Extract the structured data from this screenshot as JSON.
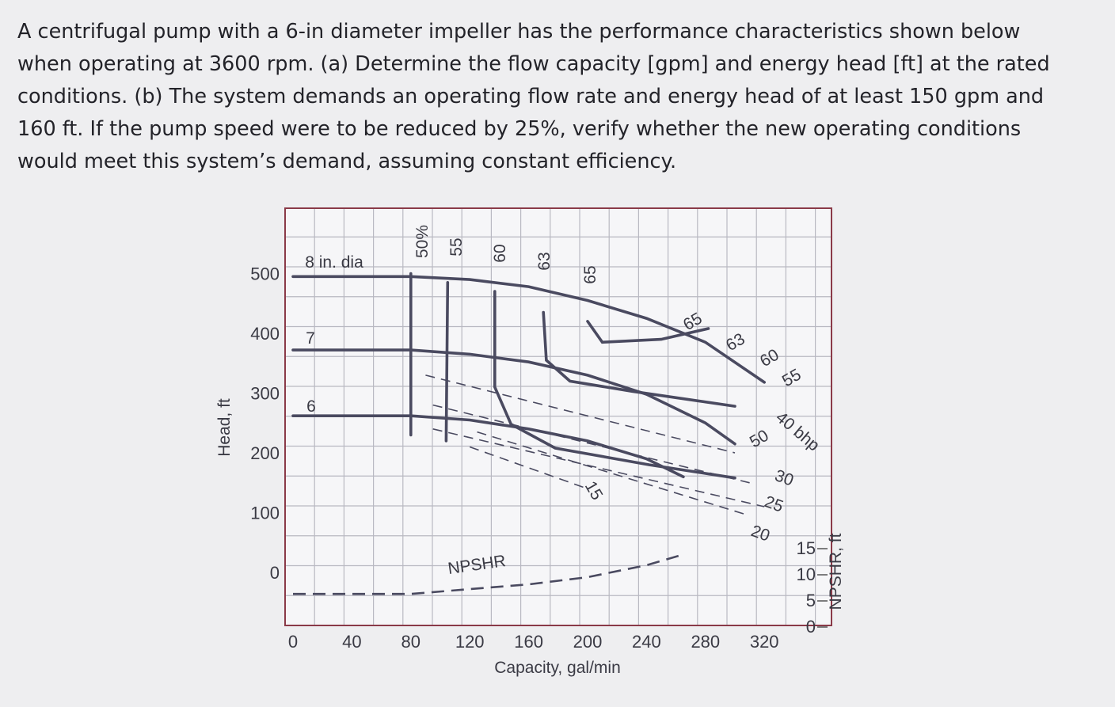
{
  "problem": {
    "text": "A centrifugal pump with a 6-in diameter impeller has the performance characteristics shown below when operating at 3600 rpm. (a) Determine the flow capacity [gpm] and energy head [ft] at the rated conditions. (b) The system demands an operating flow rate and energy head of at least 150 gpm and 160 ft. If the pump speed were to be reduced by 25%, verify whether the new operating conditions would meet this system’s demand, assuming constant efficiency."
  },
  "colors": {
    "curve": "#4a4a60",
    "grid": "#b9b9c2",
    "frame": "#8a3a48"
  },
  "chart_data": {
    "type": "line",
    "xlabel": "Capacity, gal/min",
    "ylabel": "Head, ft",
    "y2label": "NPSHR, ft",
    "x_ticks": [
      "0",
      "40",
      "80",
      "120",
      "160",
      "200",
      "240",
      "280",
      "320"
    ],
    "y_ticks": [
      "0",
      "100",
      "200",
      "300",
      "400",
      "500"
    ],
    "y2_ticks": [
      "0",
      "5",
      "10",
      "15"
    ],
    "xlim": [
      0,
      340
    ],
    "ylim": [
      -100,
      560
    ],
    "grid": true,
    "head_curves": [
      {
        "name": "8 in. dia",
        "points": [
          [
            0,
            495
          ],
          [
            80,
            495
          ],
          [
            120,
            490
          ],
          [
            160,
            478
          ],
          [
            200,
            455
          ],
          [
            240,
            425
          ],
          [
            280,
            385
          ],
          [
            320,
            318
          ]
        ]
      },
      {
        "name": "7",
        "points": [
          [
            0,
            372
          ],
          [
            80,
            372
          ],
          [
            120,
            365
          ],
          [
            160,
            352
          ],
          [
            200,
            330
          ],
          [
            240,
            298
          ],
          [
            280,
            250
          ],
          [
            300,
            215
          ]
        ]
      },
      {
        "name": "6",
        "points": [
          [
            0,
            262
          ],
          [
            80,
            262
          ],
          [
            120,
            255
          ],
          [
            160,
            240
          ],
          [
            200,
            220
          ],
          [
            240,
            190
          ],
          [
            265,
            160
          ]
        ]
      }
    ],
    "efficiency_curves": [
      {
        "name": "50%",
        "points": [
          [
            80,
            500
          ],
          [
            80,
            230
          ]
        ]
      },
      {
        "name": "55",
        "points": [
          [
            105,
            485
          ],
          [
            104,
            220
          ]
        ]
      },
      {
        "name": "60",
        "points": [
          [
            137,
            470
          ],
          [
            137,
            310
          ],
          [
            148,
            248
          ],
          [
            178,
            208
          ],
          [
            242,
            180
          ],
          [
            300,
            158
          ]
        ]
      },
      {
        "name": "63",
        "points": [
          [
            170,
            435
          ],
          [
            172,
            355
          ],
          [
            188,
            320
          ],
          [
            230,
            303
          ],
          [
            300,
            278
          ]
        ]
      },
      {
        "name": "65",
        "points": [
          [
            200,
            420
          ],
          [
            210,
            385
          ],
          [
            250,
            390
          ],
          [
            282,
            408
          ]
        ]
      }
    ],
    "bhp_lines": [
      {
        "name": "40 bhp",
        "points": [
          [
            90,
            330
          ],
          [
            300,
            200
          ]
        ]
      },
      {
        "name": "30",
        "points": [
          [
            95,
            280
          ],
          [
            310,
            150
          ]
        ]
      },
      {
        "name": "25",
        "points": [
          [
            95,
            240
          ],
          [
            320,
            110
          ]
        ]
      },
      {
        "name": "20",
        "points": [
          [
            125,
            235
          ],
          [
            310,
            95
          ]
        ]
      },
      {
        "name": "15",
        "points": [
          [
            120,
            210
          ],
          [
            200,
            140
          ]
        ]
      }
    ],
    "npshr": {
      "name": "NPSHR",
      "points": [
        [
          0,
          -36
        ],
        [
          80,
          -36
        ],
        [
          120,
          -28
        ],
        [
          160,
          -20
        ],
        [
          200,
          -8
        ],
        [
          240,
          12
        ],
        [
          265,
          30
        ]
      ]
    },
    "curve_labels": {
      "dia8": "8 in. dia",
      "dia7": "7",
      "dia6": "6",
      "eff50": "50%",
      "eff55": "55",
      "eff60": "60",
      "eff63": "63",
      "eff65": "65",
      "eff65b": "65",
      "eff63b": "63",
      "eff60b": "60",
      "eff55b": "55",
      "eff50b": "50",
      "bhp40": "40 bhp",
      "bhp30": "30",
      "bhp25": "25",
      "bhp20": "20",
      "bhp15": "15",
      "npshr": "NPSHR"
    }
  }
}
